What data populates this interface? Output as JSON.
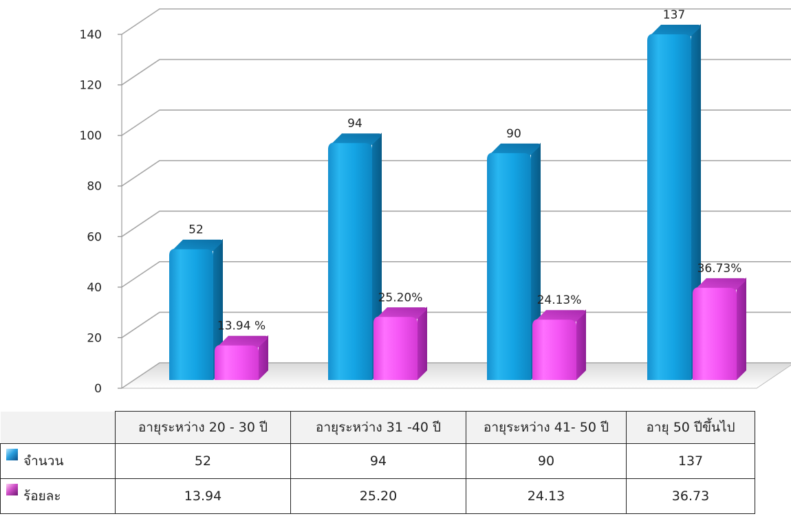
{
  "chart_data": {
    "type": "bar",
    "categories": [
      "อายุระหว่าง 20 - 30 ปี",
      "อายุระหว่าง 31 -40 ปี",
      "อายุระหว่าง 41- 50 ปี",
      "อายุ  50 ปีขึ้นไป"
    ],
    "series": [
      {
        "name": "จำนวน",
        "values": [
          52,
          94,
          90,
          137
        ],
        "labels": [
          "52",
          "94",
          "90",
          "137"
        ],
        "color": "#1aa0dc"
      },
      {
        "name": "ร้อยละ",
        "values": [
          13.94,
          25.2,
          24.13,
          36.73
        ],
        "labels": [
          "13.94 %",
          "25.20%",
          "24.13%",
          "36.73%"
        ],
        "color": "#f04cf0"
      }
    ],
    "yticks": [
      "0",
      "20",
      "40",
      "60",
      "80",
      "100",
      "120",
      "140"
    ],
    "ylim": [
      0,
      140
    ],
    "grid": true,
    "legend": "data-table"
  },
  "table": {
    "headers": [
      "อายุระหว่าง 20 - 30 ปี",
      "อายุระหว่าง 31 -40 ปี",
      "อายุระหว่าง 41- 50 ปี",
      "อายุ  50 ปีขึ้นไป"
    ],
    "rows": [
      {
        "label": "จำนวน",
        "cells": [
          "52",
          "94",
          "90",
          "137"
        ]
      },
      {
        "label": "ร้อยละ",
        "cells": [
          "13.94",
          "25.20",
          "24.13",
          "36.73"
        ]
      }
    ]
  }
}
